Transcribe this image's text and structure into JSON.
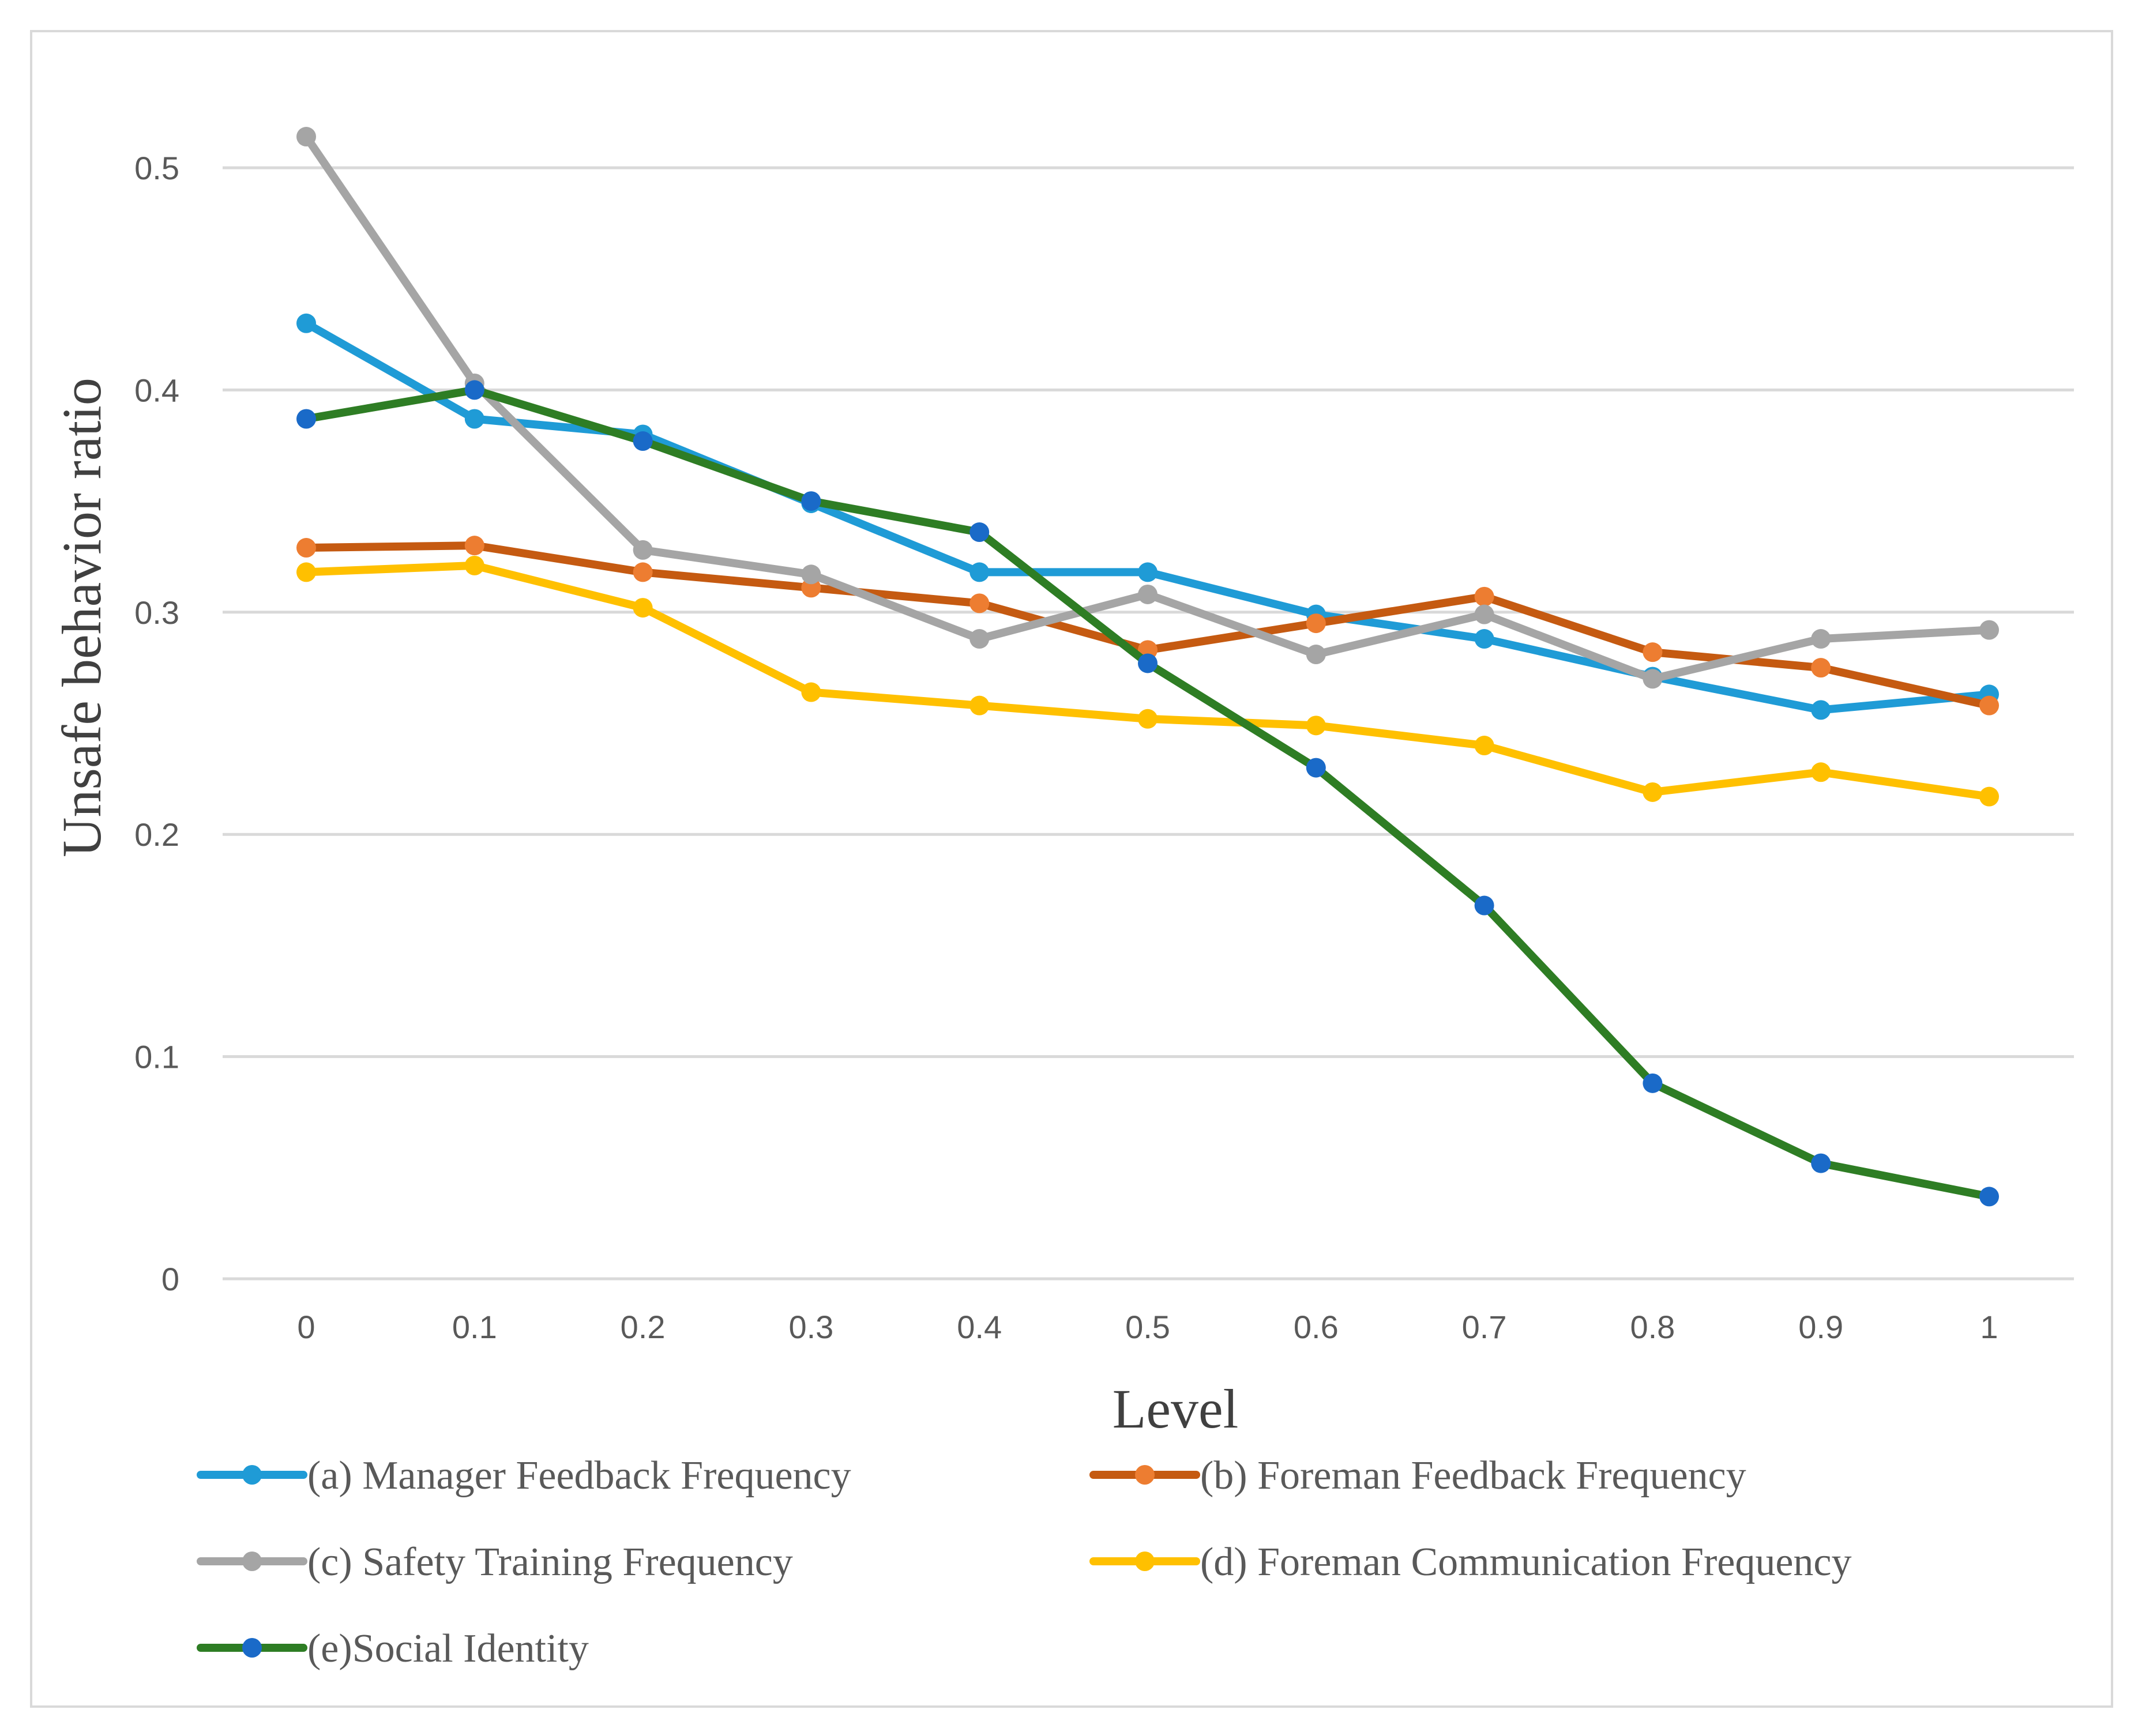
{
  "chart_data": {
    "type": "line",
    "title": "",
    "xlabel": "Level",
    "ylabel": "Unsafe behavior ratio",
    "categories": [
      "0",
      "0.1",
      "0.2",
      "0.3",
      "0.4",
      "0.5",
      "0.6",
      "0.7",
      "0.8",
      "0.9",
      "1"
    ],
    "ylim": [
      0,
      0.5
    ],
    "yticks": [
      "0",
      "0.1",
      "0.2",
      "0.3",
      "0.4",
      "0.5"
    ],
    "grid": true,
    "legend_position": "bottom",
    "series": [
      {
        "name": "(a) Manager Feedback Frequency",
        "line_color": "#1f9bd6",
        "marker_color": "#1f9bd6",
        "values": [
          0.43,
          0.387,
          0.38,
          0.349,
          0.318,
          0.318,
          0.299,
          0.288,
          0.271,
          0.256,
          0.263
        ]
      },
      {
        "name": "(b) Foreman Feedback Frequency",
        "line_color": "#c55a11",
        "marker_color": "#ed7d31",
        "values": [
          0.329,
          0.33,
          0.318,
          0.311,
          0.304,
          0.283,
          0.295,
          0.307,
          0.282,
          0.275,
          0.258
        ]
      },
      {
        "name": "(c) Safety Training Frequency",
        "line_color": "#a5a5a5",
        "marker_color": "#a5a5a5",
        "values": [
          0.514,
          0.403,
          0.328,
          0.317,
          0.288,
          0.308,
          0.281,
          0.299,
          0.27,
          0.288,
          0.292
        ]
      },
      {
        "name": "(d) Foreman Communication Frequency",
        "line_color": "#ffc000",
        "marker_color": "#ffc000",
        "values": [
          0.318,
          0.321,
          0.302,
          0.264,
          0.258,
          0.252,
          0.249,
          0.24,
          0.219,
          0.228,
          0.217
        ]
      },
      {
        "name": "(e)Social Identity",
        "line_color": "#2e7d24",
        "marker_color": "#1a6ac8",
        "values": [
          0.387,
          0.4,
          0.377,
          0.35,
          0.336,
          0.277,
          0.23,
          0.168,
          0.088,
          0.052,
          0.037
        ]
      }
    ]
  }
}
